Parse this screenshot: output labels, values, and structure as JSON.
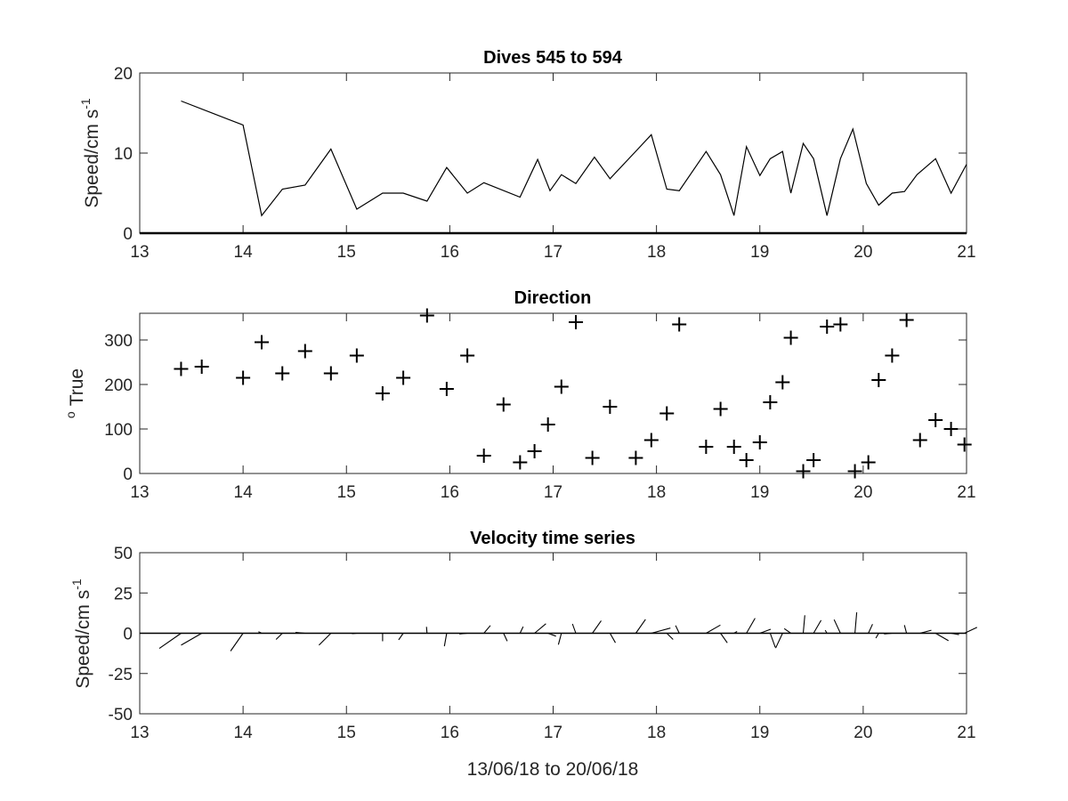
{
  "chart_data": [
    {
      "type": "line",
      "title": "Dives 545 to 594",
      "ylabel": "Speed/cm s",
      "ylabel_superscript": "-1",
      "xlim": [
        13,
        21
      ],
      "ylim": [
        0,
        20
      ],
      "xticks": [
        13,
        14,
        15,
        16,
        17,
        18,
        19,
        20,
        21
      ],
      "yticks": [
        0,
        10,
        20
      ],
      "grid": false,
      "series": [
        {
          "x": [
            13.4,
            14.0,
            14.18,
            14.38,
            14.6,
            14.85,
            15.1,
            15.35,
            15.55,
            15.78,
            15.97,
            16.17,
            16.33,
            16.68,
            16.85,
            16.97,
            17.08,
            17.22,
            17.4,
            17.55,
            17.82,
            17.95,
            18.1,
            18.22,
            18.48,
            18.62,
            18.75,
            18.87,
            19.0,
            19.1,
            19.22,
            19.3,
            19.42,
            19.52,
            19.65,
            19.78,
            19.9,
            20.03,
            20.15,
            20.28,
            20.4,
            20.52,
            20.7,
            20.85,
            21.0
          ],
          "values": [
            16.5,
            13.5,
            2.2,
            5.5,
            6.0,
            10.5,
            3.0,
            5.0,
            5.0,
            4.0,
            8.2,
            5.0,
            6.3,
            4.5,
            9.2,
            5.3,
            7.3,
            6.2,
            9.5,
            6.8,
            10.5,
            12.3,
            5.5,
            5.3,
            10.2,
            7.3,
            2.2,
            10.8,
            7.2,
            9.3,
            10.2,
            5.0,
            11.2,
            9.3,
            2.2,
            9.3,
            13.0,
            6.2,
            3.5,
            5.0,
            5.2,
            7.3,
            9.3,
            5.0,
            8.6
          ]
        }
      ]
    },
    {
      "type": "scatter",
      "title": "Direction",
      "ylabel": "True",
      "ylabel_superscript": "o",
      "xlim": [
        13,
        21
      ],
      "ylim": [
        0,
        360
      ],
      "xticks": [
        13,
        14,
        15,
        16,
        17,
        18,
        19,
        20,
        21
      ],
      "yticks": [
        0,
        100,
        200,
        300
      ],
      "grid": false,
      "series": [
        {
          "x": [
            13.4,
            13.6,
            14.0,
            14.18,
            14.38,
            14.6,
            14.85,
            15.1,
            15.35,
            15.55,
            15.78,
            15.97,
            16.17,
            16.33,
            16.52,
            16.68,
            16.82,
            16.95,
            17.08,
            17.22,
            17.38,
            17.55,
            17.8,
            17.95,
            18.1,
            18.22,
            18.48,
            18.62,
            18.75,
            18.87,
            19.0,
            19.1,
            19.22,
            19.3,
            19.42,
            19.52,
            19.65,
            19.78,
            19.92,
            20.05,
            20.15,
            20.28,
            20.42,
            20.55,
            20.7,
            20.85,
            20.98
          ],
          "values": [
            235,
            240,
            215,
            295,
            225,
            275,
            225,
            265,
            180,
            215,
            355,
            190,
            265,
            40,
            155,
            25,
            50,
            110,
            195,
            340,
            35,
            150,
            35,
            75,
            135,
            335,
            60,
            145,
            60,
            30,
            70,
            160,
            205,
            305,
            5,
            30,
            330,
            335,
            5,
            25,
            210,
            265,
            345,
            75,
            120,
            100,
            65
          ]
        }
      ]
    },
    {
      "type": "line",
      "subtype": "stick-plot",
      "title": "Velocity time series",
      "ylabel": "Speed/cm s",
      "ylabel_superscript": "-1",
      "xlabel": "13/06/18 to 20/06/18",
      "xlim": [
        13,
        21
      ],
      "ylim": [
        -50,
        50
      ],
      "xticks": [
        13,
        14,
        15,
        16,
        17,
        18,
        19,
        20,
        21
      ],
      "yticks": [
        -50,
        -25,
        0,
        25,
        50
      ],
      "ytick_labels": [
        "-50",
        "-25",
        "0",
        "25",
        "50"
      ],
      "grid": false,
      "series": [
        {
          "x": [
            13.4,
            13.6,
            14.0,
            14.18,
            14.38,
            14.6,
            14.85,
            15.1,
            15.35,
            15.55,
            15.78,
            15.97,
            16.17,
            16.33,
            16.52,
            16.68,
            16.82,
            16.95,
            17.08,
            17.22,
            17.38,
            17.55,
            17.8,
            17.95,
            18.1,
            18.22,
            18.48,
            18.62,
            18.75,
            18.87,
            19.0,
            19.1,
            19.22,
            19.3,
            19.42,
            19.52,
            19.65,
            19.78,
            19.92,
            20.05,
            20.15,
            20.28,
            20.42,
            20.55,
            20.7,
            20.85,
            20.98
          ],
          "speed": [
            16.5,
            14.8,
            13.5,
            2.2,
            5.5,
            6.0,
            10.5,
            3.0,
            5.0,
            5.0,
            4.0,
            8.2,
            5.0,
            6.3,
            5.4,
            4.5,
            9.2,
            5.3,
            7.3,
            6.2,
            9.5,
            6.8,
            10.5,
            12.3,
            5.5,
            5.3,
            10.2,
            7.3,
            2.2,
            10.8,
            7.2,
            9.3,
            10.2,
            5.0,
            11.2,
            9.3,
            2.2,
            9.3,
            13.0,
            6.2,
            3.5,
            5.0,
            5.2,
            7.3,
            9.3,
            5.0,
            8.6
          ],
          "direction": [
            235,
            240,
            215,
            295,
            225,
            275,
            225,
            265,
            180,
            215,
            355,
            190,
            265,
            40,
            155,
            25,
            50,
            110,
            195,
            340,
            35,
            150,
            35,
            75,
            135,
            335,
            60,
            145,
            60,
            30,
            70,
            160,
            205,
            305,
            5,
            30,
            330,
            335,
            5,
            25,
            210,
            265,
            345,
            75,
            120,
            100,
            65
          ]
        }
      ]
    }
  ]
}
